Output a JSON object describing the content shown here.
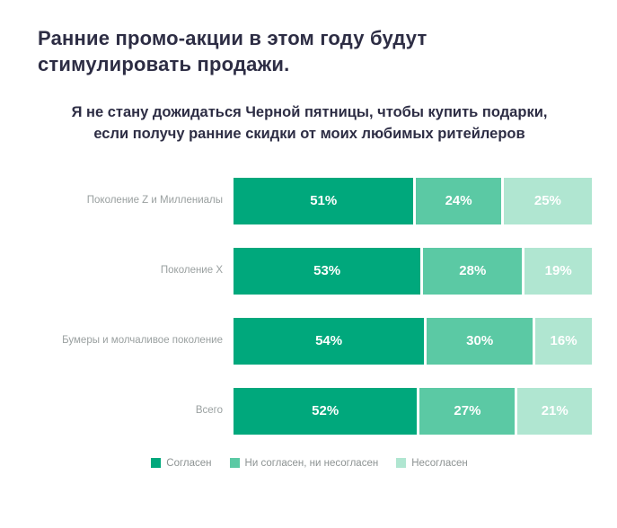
{
  "page": {
    "title": "Ранние промо-акции в этом году будут стимулировать продажи.",
    "subtitle": "Я не стану дожидаться Черной пятницы, чтобы купить подарки, если получу ранние скидки от моих любимых ритейлеров"
  },
  "chart_data": {
    "type": "bar",
    "orientation": "horizontal",
    "stacked": true,
    "title": "Ранние промо-акции в этом году будут стимулировать продажи.",
    "subtitle": "Я не стану дожидаться Черной пятницы, чтобы купить подарки, если получу ранние скидки от моих любимых ритейлеров",
    "categories": [
      "Поколение Z и Миллениалы",
      "Поколение X",
      "Бумеры и молчаливое поколение",
      "Всего"
    ],
    "series": [
      {
        "name": "Согласен",
        "color": "#00a87c",
        "values": [
          51,
          53,
          54,
          52
        ]
      },
      {
        "name": "Ни согласен, ни несогласен",
        "color": "#5bc9a4",
        "values": [
          24,
          28,
          30,
          27
        ]
      },
      {
        "name": "Несогласен",
        "color": "#b0e6d1",
        "values": [
          25,
          19,
          16,
          21
        ]
      }
    ],
    "value_suffix": "%",
    "xlim": [
      0,
      100
    ],
    "grid": false,
    "legend_position": "bottom",
    "value_label_color": "#ffffff"
  }
}
